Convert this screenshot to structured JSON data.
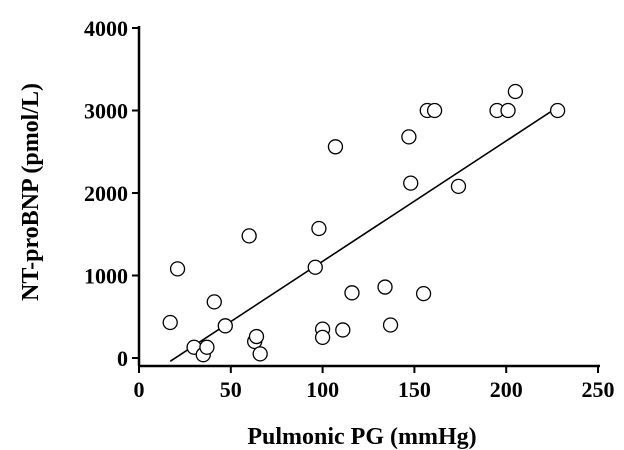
{
  "chart_data": {
    "type": "scatter",
    "xlabel": "Pulmonic PG (mmHg)",
    "ylabel": "NT-proBNP (pmol/L)",
    "xlim": [
      0,
      250
    ],
    "ylim": [
      0,
      4000
    ],
    "x_ticks": [
      0,
      50,
      100,
      150,
      200,
      250
    ],
    "y_ticks": [
      0,
      1000,
      2000,
      3000,
      4000
    ],
    "grid": false,
    "series": [
      {
        "points": [
          {
            "x": 17,
            "y": 430
          },
          {
            "x": 21,
            "y": 1080
          },
          {
            "x": 30,
            "y": 130
          },
          {
            "x": 35,
            "y": 40
          },
          {
            "x": 37,
            "y": 130
          },
          {
            "x": 41,
            "y": 680
          },
          {
            "x": 47,
            "y": 390
          },
          {
            "x": 60,
            "y": 1480
          },
          {
            "x": 63,
            "y": 200
          },
          {
            "x": 64,
            "y": 260
          },
          {
            "x": 66,
            "y": 50
          },
          {
            "x": 96,
            "y": 1100
          },
          {
            "x": 98,
            "y": 1570
          },
          {
            "x": 100,
            "y": 350
          },
          {
            "x": 100,
            "y": 250
          },
          {
            "x": 107,
            "y": 2560
          },
          {
            "x": 111,
            "y": 340
          },
          {
            "x": 116,
            "y": 790
          },
          {
            "x": 134,
            "y": 860
          },
          {
            "x": 137,
            "y": 400
          },
          {
            "x": 147,
            "y": 2680
          },
          {
            "x": 148,
            "y": 2120
          },
          {
            "x": 155,
            "y": 780
          },
          {
            "x": 157,
            "y": 3000
          },
          {
            "x": 161,
            "y": 3000
          },
          {
            "x": 174,
            "y": 2080
          },
          {
            "x": 195,
            "y": 3000
          },
          {
            "x": 201,
            "y": 3000
          },
          {
            "x": 205,
            "y": 3230
          },
          {
            "x": 228,
            "y": 3000
          }
        ]
      }
    ],
    "trend_line": {
      "x": [
        17,
        228
      ],
      "y": [
        -40,
        3040
      ]
    }
  }
}
